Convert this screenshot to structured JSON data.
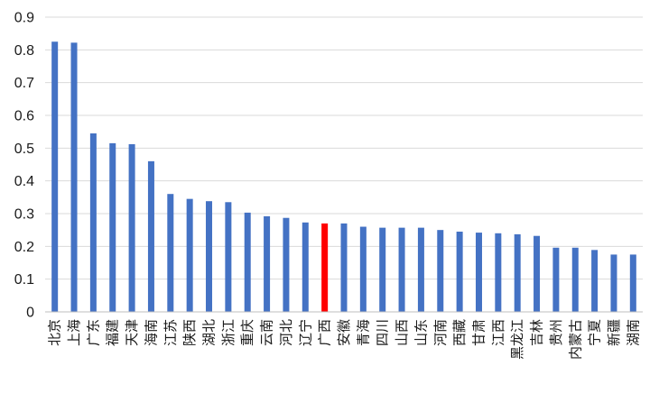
{
  "chart_data": {
    "type": "bar",
    "title": "",
    "xlabel": "",
    "ylabel": "",
    "ylim": [
      0,
      0.9
    ],
    "yticks": [
      "0",
      "0.1",
      "0.2",
      "0.3",
      "0.4",
      "0.5",
      "0.6",
      "0.7",
      "0.8",
      "0.9"
    ],
    "grid": true,
    "legend": "none",
    "bar_color": "#4472C4",
    "highlight_color": "#FF0000",
    "highlight_category": "广西",
    "categories": [
      "北京",
      "上海",
      "广东",
      "福建",
      "天津",
      "海南",
      "江苏",
      "陕西",
      "湖北",
      "浙江",
      "重庆",
      "云南",
      "河北",
      "辽宁",
      "广西",
      "安徽",
      "青海",
      "四川",
      "山西",
      "山东",
      "河南",
      "西藏",
      "甘肃",
      "江西",
      "黑龙江",
      "吉林",
      "贵州",
      "内蒙古",
      "宁夏",
      "新疆",
      "湖南"
    ],
    "values": [
      0.825,
      0.822,
      0.545,
      0.515,
      0.512,
      0.46,
      0.36,
      0.345,
      0.338,
      0.335,
      0.303,
      0.292,
      0.287,
      0.273,
      0.27,
      0.27,
      0.26,
      0.257,
      0.257,
      0.257,
      0.25,
      0.245,
      0.242,
      0.24,
      0.237,
      0.232,
      0.196,
      0.196,
      0.189,
      0.175,
      0.175
    ]
  }
}
